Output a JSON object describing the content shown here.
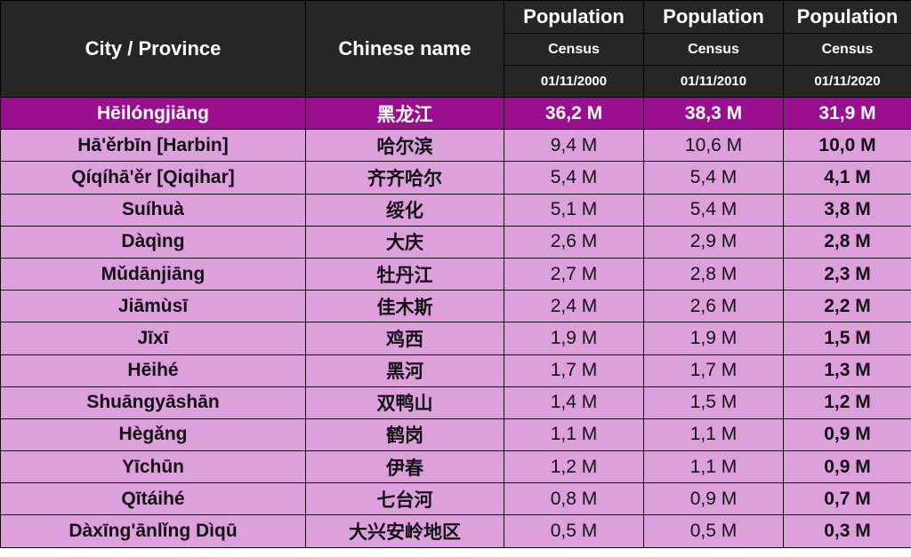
{
  "header": {
    "city_label": "City / Province",
    "chinese_label": "Chinese name",
    "columns": [
      {
        "population": "Population",
        "census": "Census",
        "date": "01/11/2000"
      },
      {
        "population": "Population",
        "census": "Census",
        "date": "01/11/2010"
      },
      {
        "population": "Population",
        "census": "Census",
        "date": "01/11/2020"
      }
    ]
  },
  "colors": {
    "header_bg": "#262626",
    "province_row_bg": "#990f8f",
    "city_row_bg": "#dda0dd"
  },
  "rows": [
    {
      "name": "Hēilóngjiāng",
      "chinese": "黑龙江",
      "p2000": "36,2 M",
      "p2010": "38,3 M",
      "p2020": "31,9 M"
    },
    {
      "name": "Hā'ěrbīn   [Harbin]",
      "chinese": "哈尔滨",
      "p2000": "9,4 M",
      "p2010": "10,6 M",
      "p2020": "10,0 M"
    },
    {
      "name": "Qíqíhā'ěr   [Qiqihar]",
      "chinese": "齐齐哈尔",
      "p2000": "5,4 M",
      "p2010": "5,4 M",
      "p2020": "4,1 M"
    },
    {
      "name": "Suíhuà",
      "chinese": "绥化",
      "p2000": "5,1 M",
      "p2010": "5,4 M",
      "p2020": "3,8 M"
    },
    {
      "name": "Dàqìng",
      "chinese": "大庆",
      "p2000": "2,6 M",
      "p2010": "2,9 M",
      "p2020": "2,8 M"
    },
    {
      "name": "Mǔdānjiāng",
      "chinese": "牡丹江",
      "p2000": "2,7 M",
      "p2010": "2,8 M",
      "p2020": "2,3 M"
    },
    {
      "name": "Jiāmùsī",
      "chinese": "佳木斯",
      "p2000": "2,4 M",
      "p2010": "2,6 M",
      "p2020": "2,2 M"
    },
    {
      "name": "Jīxī",
      "chinese": "鸡西",
      "p2000": "1,9 M",
      "p2010": "1,9 M",
      "p2020": "1,5 M"
    },
    {
      "name": "Hēihé",
      "chinese": "黑河",
      "p2000": "1,7 M",
      "p2010": "1,7 M",
      "p2020": "1,3 M"
    },
    {
      "name": "Shuāngyāshān",
      "chinese": "双鸭山",
      "p2000": "1,4 M",
      "p2010": "1,5 M",
      "p2020": "1,2 M"
    },
    {
      "name": "Hègǎng",
      "chinese": "鹤岗",
      "p2000": "1,1 M",
      "p2010": "1,1 M",
      "p2020": "0,9 M"
    },
    {
      "name": "Yīchūn",
      "chinese": "伊春",
      "p2000": "1,2 M",
      "p2010": "1,1 M",
      "p2020": "0,9 M"
    },
    {
      "name": "Qītáihé",
      "chinese": "七台河",
      "p2000": "0,8 M",
      "p2010": "0,9 M",
      "p2020": "0,7 M"
    },
    {
      "name": "Dàxīng'ānlǐng Dìqū",
      "chinese": "大兴安岭地区",
      "p2000": "0,5 M",
      "p2010": "0,5 M",
      "p2020": "0,3 M"
    }
  ]
}
